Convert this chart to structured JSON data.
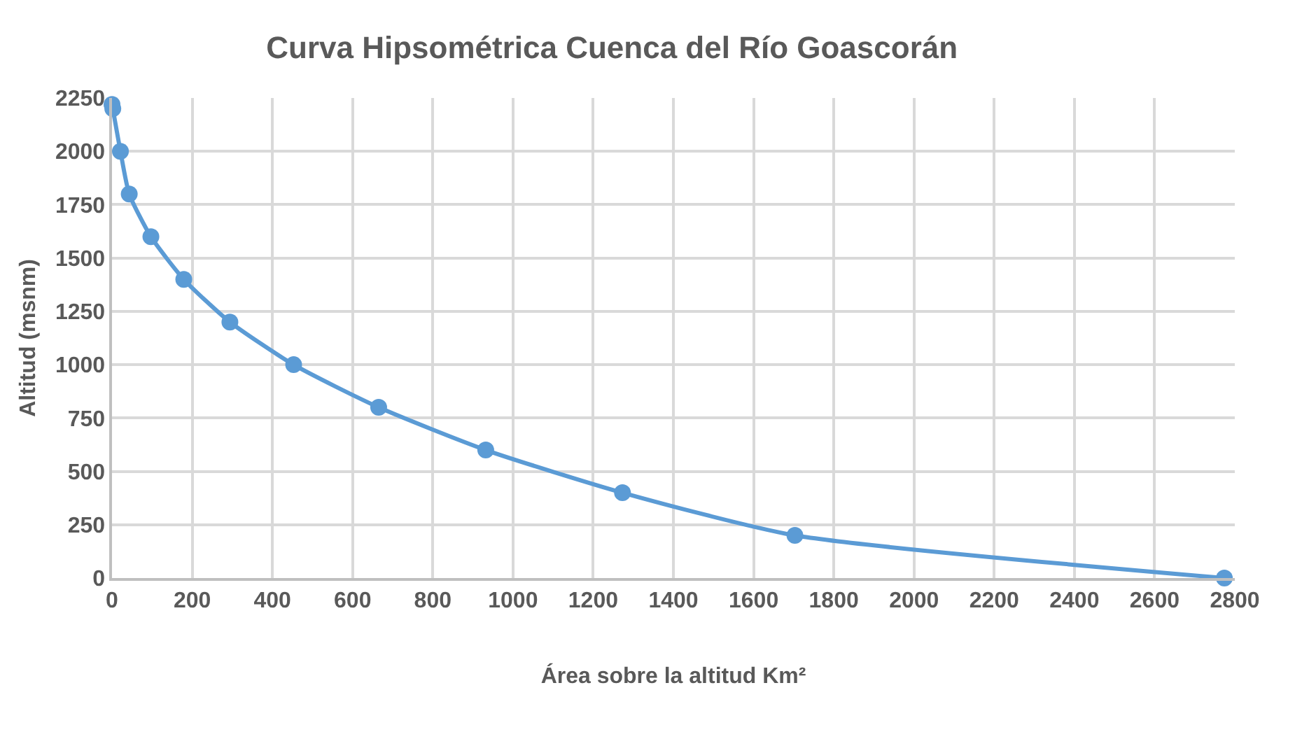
{
  "chart_data": {
    "type": "line",
    "title": "Curva Hipsométrica Cuenca del Río Goascorán",
    "xlabel": "Área sobre la altitud Km²",
    "ylabel": "Altitud (msnm)",
    "series": [
      {
        "color": "#5b9bd5",
        "x": [
          0,
          2,
          21,
          43,
          97,
          179,
          294,
          453,
          665,
          932,
          1273,
          1703,
          2774
        ],
        "values": [
          2220,
          2200,
          2000,
          1800,
          1600,
          1400,
          1200,
          1000,
          800,
          600,
          400,
          200,
          0
        ]
      }
    ],
    "xlim": [
      0,
      2800
    ],
    "xticks": [
      0,
      200,
      400,
      600,
      800,
      1000,
      1200,
      1400,
      1600,
      1800,
      2000,
      2200,
      2400,
      2600,
      2800
    ],
    "ylim": [
      0,
      2250
    ],
    "yticks": [
      0,
      250,
      500,
      750,
      1000,
      1250,
      1500,
      1750,
      2000,
      2250
    ],
    "grid": true,
    "marker": "circle",
    "line_style": "solid"
  }
}
